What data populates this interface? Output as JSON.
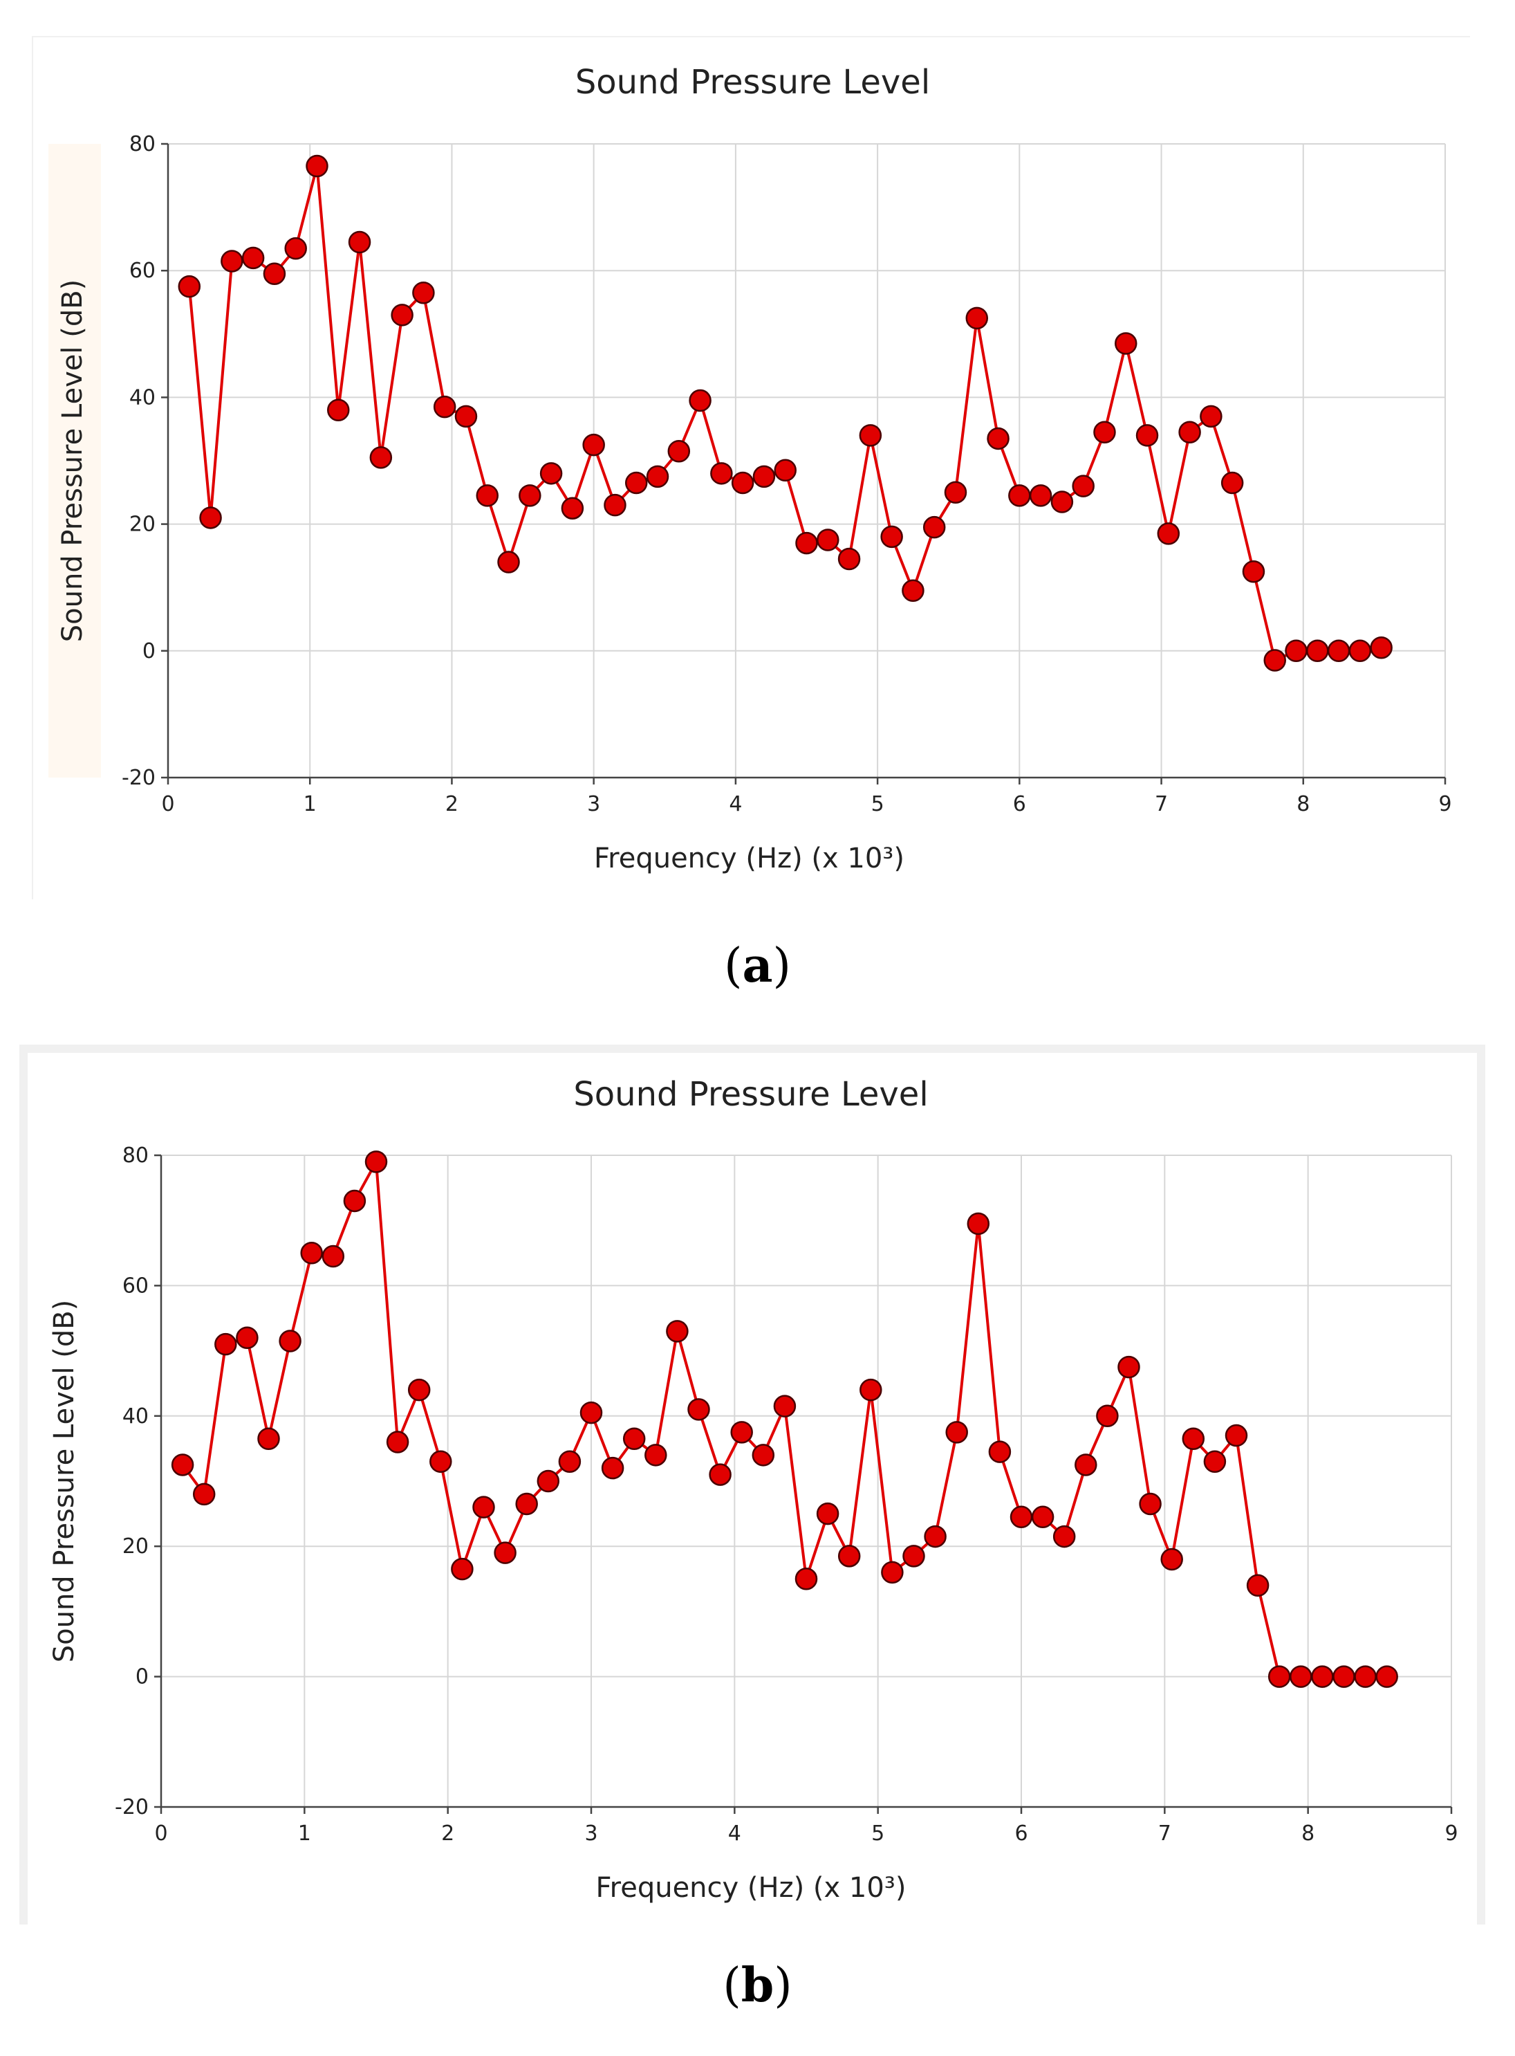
{
  "chart_data": [
    {
      "type": "line",
      "panel_label": "a",
      "title": "Sound Pressure Level",
      "xlabel": "Frequency (Hz) (x 10³)",
      "ylabel": "Sound Pressure Level (dB)",
      "xlim": [
        0,
        9
      ],
      "ylim": [
        -20,
        80
      ],
      "xticks": [
        0,
        1,
        2,
        3,
        4,
        5,
        6,
        7,
        8,
        9
      ],
      "yticks": [
        -20,
        0,
        20,
        40,
        60,
        80
      ],
      "grid": true,
      "series": [
        {
          "name": "Sound Pressure Level",
          "color": "#e00000",
          "x": [
            0.15,
            0.3,
            0.45,
            0.6,
            0.75,
            0.9,
            1.05,
            1.2,
            1.35,
            1.5,
            1.65,
            1.8,
            1.95,
            2.1,
            2.25,
            2.4,
            2.55,
            2.7,
            2.85,
            3.0,
            3.15,
            3.3,
            3.45,
            3.6,
            3.75,
            3.9,
            4.05,
            4.2,
            4.35,
            4.5,
            4.65,
            4.8,
            4.95,
            5.1,
            5.25,
            5.4,
            5.55,
            5.7,
            5.85,
            6.0,
            6.15,
            6.3,
            6.45,
            6.6,
            6.75,
            6.9,
            7.05,
            7.2,
            7.35,
            7.5,
            7.65,
            7.8,
            7.95,
            8.1,
            8.25,
            8.4,
            8.55
          ],
          "y": [
            57.5,
            21,
            61.5,
            62,
            59.5,
            63.5,
            76.5,
            38,
            64.5,
            30.5,
            53,
            56.5,
            38.5,
            37,
            24.5,
            14,
            24.5,
            28,
            22.5,
            32.5,
            23,
            26.5,
            27.5,
            31.5,
            39.5,
            28,
            26.5,
            27.5,
            28.5,
            17,
            17.5,
            14.5,
            34,
            18,
            9.5,
            19.5,
            25,
            52.5,
            33.5,
            24.5,
            24.5,
            23.5,
            26,
            34.5,
            48.5,
            34,
            18.5,
            34.5,
            37,
            26.5,
            12.5,
            -1.5,
            0,
            0,
            0,
            0,
            0.5
          ]
        }
      ]
    },
    {
      "type": "line",
      "panel_label": "b",
      "title": "Sound Pressure Level",
      "xlabel": "Frequency (Hz) (x 10³)",
      "ylabel": "Sound Pressure Level (dB)",
      "xlim": [
        0,
        9
      ],
      "ylim": [
        -20,
        80
      ],
      "xticks": [
        0,
        1,
        2,
        3,
        4,
        5,
        6,
        7,
        8,
        9
      ],
      "yticks": [
        -20,
        0,
        20,
        40,
        60,
        80
      ],
      "grid": true,
      "series": [
        {
          "name": "Sound Pressure Level",
          "color": "#e00000",
          "x": [
            0.15,
            0.3,
            0.45,
            0.6,
            0.75,
            0.9,
            1.05,
            1.2,
            1.35,
            1.5,
            1.65,
            1.8,
            1.95,
            2.1,
            2.25,
            2.4,
            2.55,
            2.7,
            2.85,
            3.0,
            3.15,
            3.3,
            3.45,
            3.6,
            3.75,
            3.9,
            4.05,
            4.2,
            4.35,
            4.5,
            4.65,
            4.8,
            4.95,
            5.1,
            5.25,
            5.4,
            5.55,
            5.7,
            5.85,
            6.0,
            6.15,
            6.3,
            6.45,
            6.6,
            6.75,
            6.9,
            7.05,
            7.2,
            7.35,
            7.5,
            7.65,
            7.8,
            7.95,
            8.1,
            8.25,
            8.4,
            8.55
          ],
          "y": [
            32.5,
            28,
            51,
            52,
            36.5,
            51.5,
            65,
            64.5,
            73,
            79,
            36,
            44,
            33,
            16.5,
            26,
            19,
            26.5,
            30,
            33,
            40.5,
            32,
            36.5,
            34,
            53,
            41,
            31,
            37.5,
            34,
            41.5,
            15,
            25,
            18.5,
            44,
            16,
            18.5,
            21.5,
            37.5,
            69.5,
            34.5,
            24.5,
            24.5,
            21.5,
            32.5,
            40,
            47.5,
            26.5,
            18,
            36.5,
            33,
            37,
            14,
            0,
            0,
            0,
            0,
            0,
            0
          ]
        }
      ]
    }
  ]
}
